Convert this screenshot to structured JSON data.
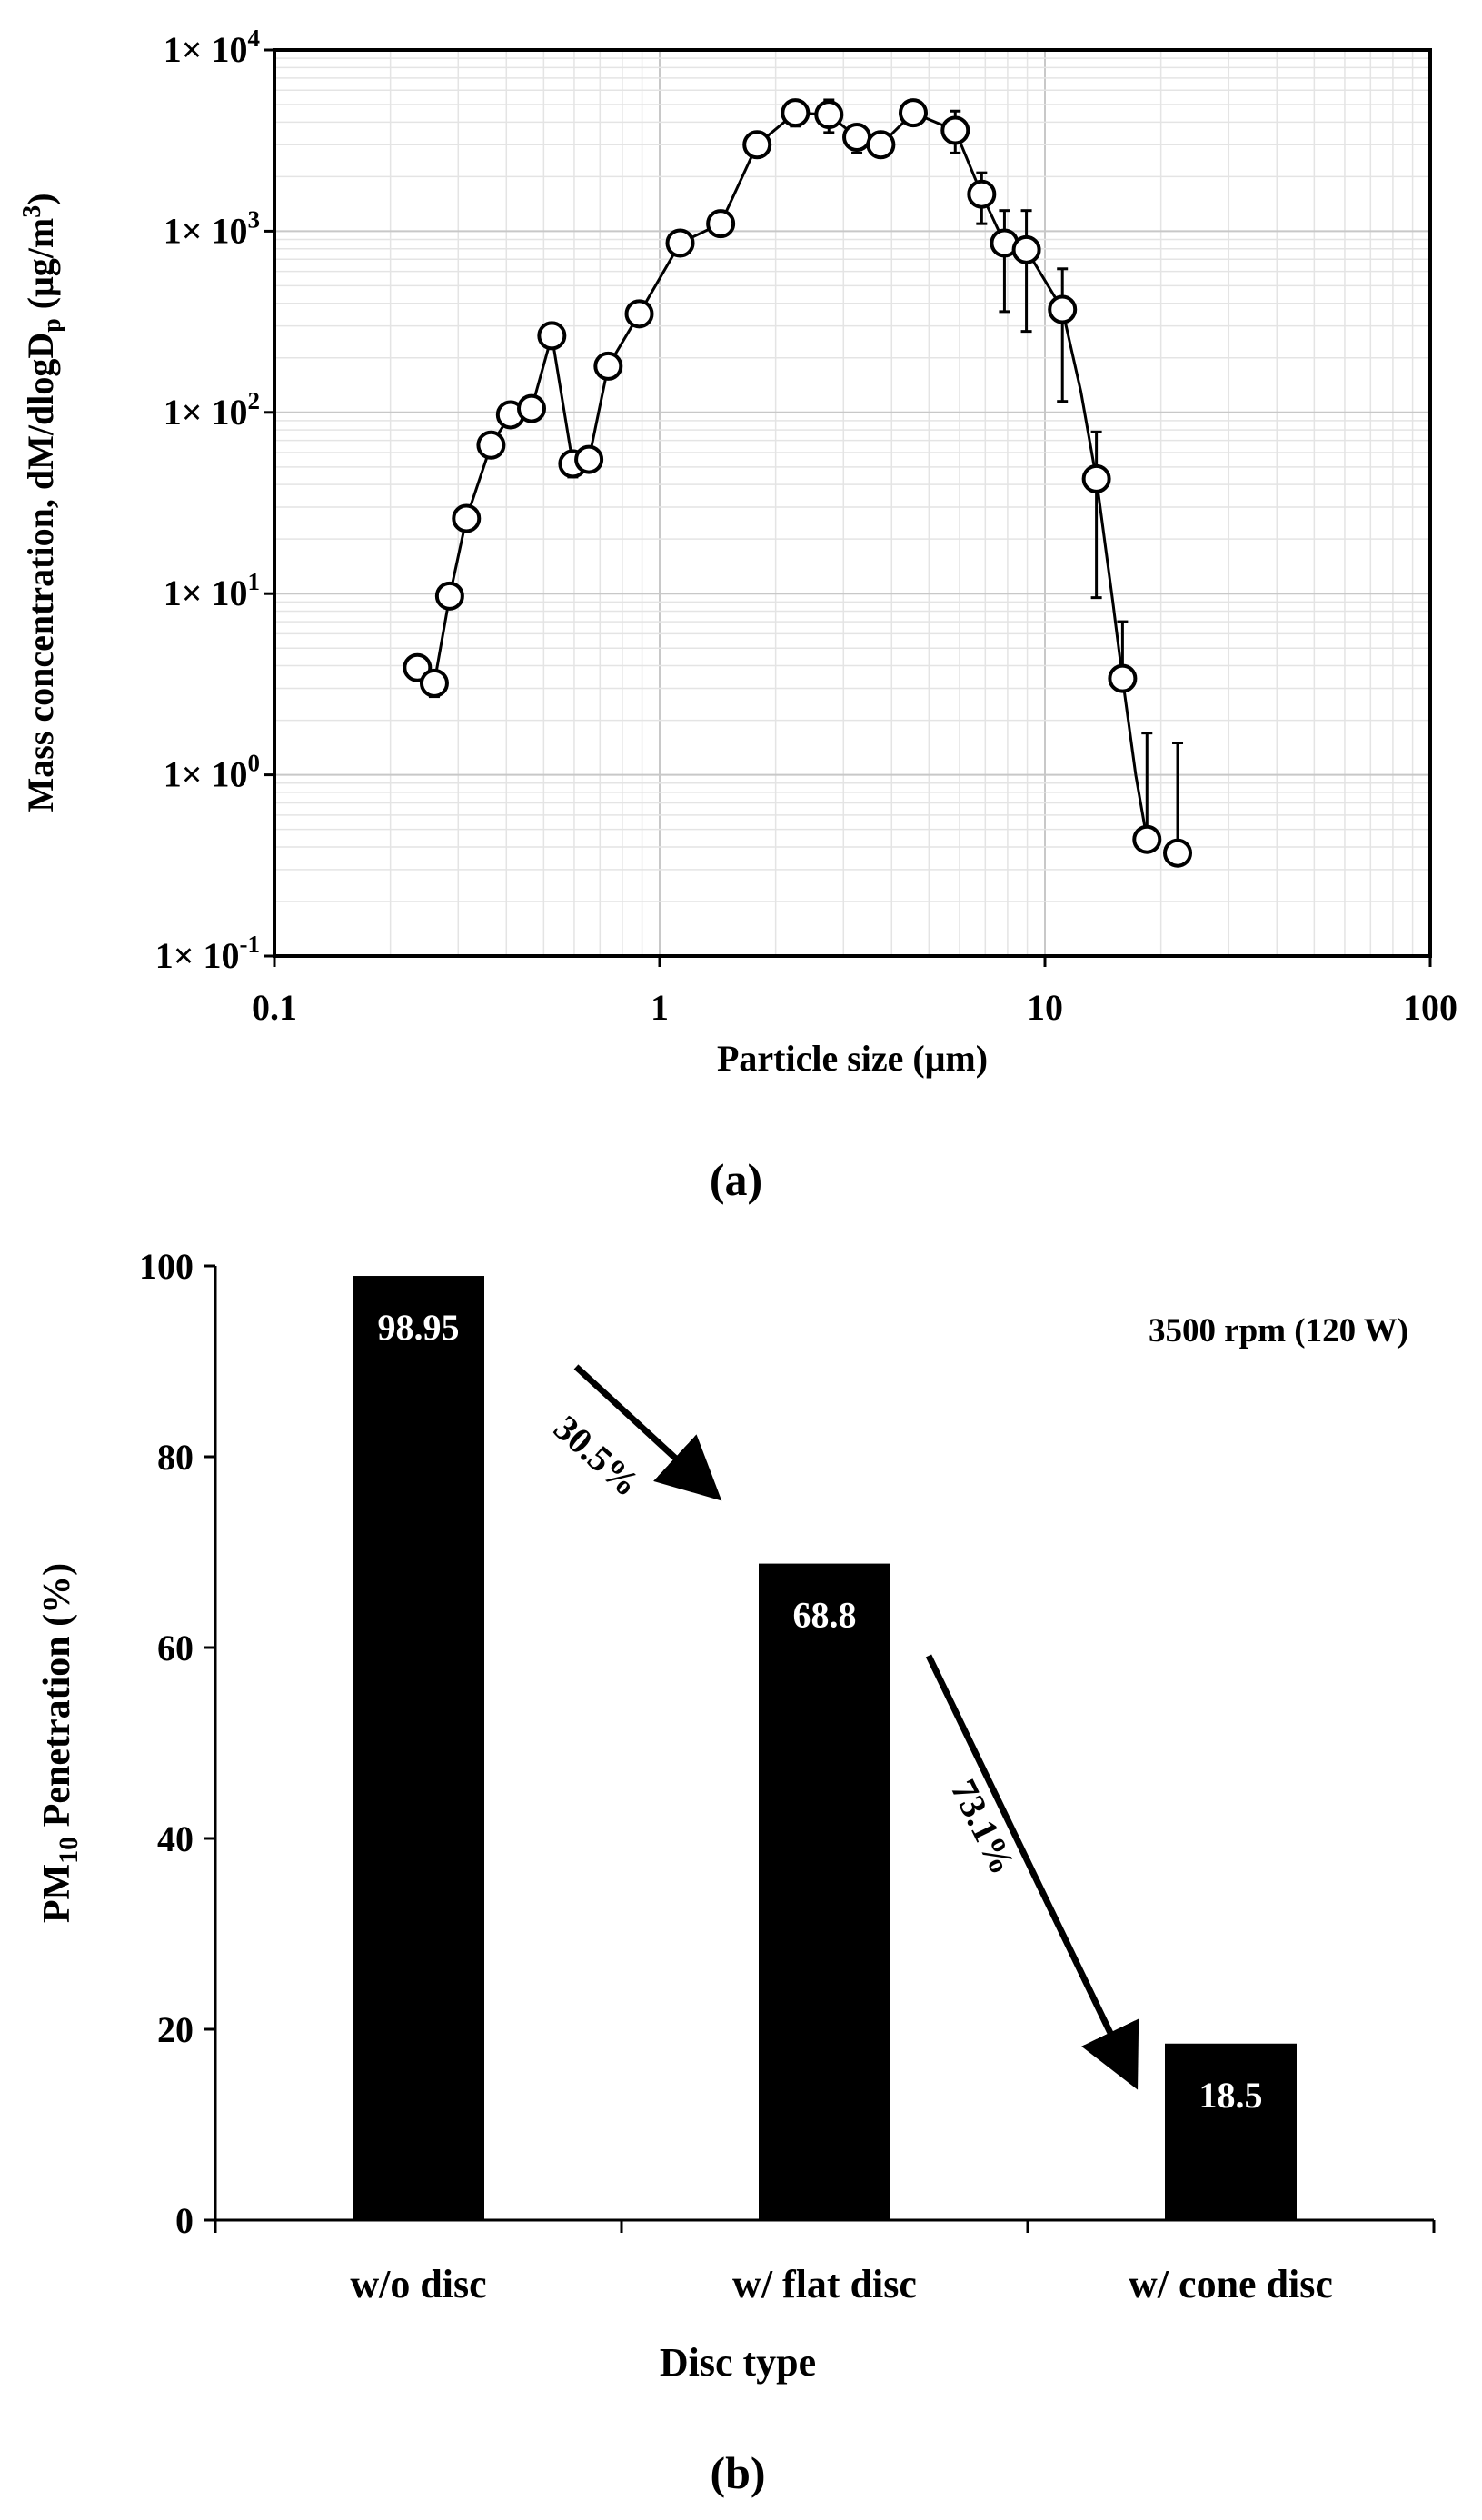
{
  "chart_data": [
    {
      "type": "scatter",
      "panel_label": "(a)",
      "xlabel": "Particle size (μm)",
      "ylabel_parts": [
        "Mass concentration, dM/dlogD",
        "p",
        " (μg/m",
        "3",
        ")"
      ],
      "xscale": "log",
      "yscale": "log",
      "xlim": [
        0.1,
        100
      ],
      "ylim": [
        0.1,
        10000
      ],
      "x_tick_labels": [
        "0.1",
        "1",
        "10",
        "100"
      ],
      "y_tick_labels": [
        {
          "base": "1× 10",
          "exp": "-1"
        },
        {
          "base": "1× 10",
          "exp": "0"
        },
        {
          "base": "1× 10",
          "exp": "1"
        },
        {
          "base": "1× 10",
          "exp": "2"
        },
        {
          "base": "1× 10",
          "exp": "3"
        },
        {
          "base": "1× 10",
          "exp": "4"
        }
      ],
      "grid": true,
      "series": [
        {
          "name": "Mass concentration",
          "x": [
            0.235,
            0.26,
            0.285,
            0.315,
            0.365,
            0.41,
            0.465,
            0.525,
            0.595,
            0.655,
            0.735,
            0.885,
            1.13,
            1.44,
            1.79,
            2.25,
            2.75,
            3.25,
            3.75,
            4.55,
            5.85,
            6.85,
            7.85,
            8.95,
            11.1,
            13.6,
            15.9,
            18.4,
            22.1
          ],
          "y": [
            3.9,
            3.2,
            9.7,
            26,
            66,
            97,
            105,
            265,
            52,
            55,
            180,
            350,
            860,
            1100,
            3000,
            4500,
            4400,
            3300,
            3000,
            4500,
            3600,
            1600,
            860,
            790,
            370,
            43,
            3.4,
            0.44,
            0.37
          ],
          "y_upper": [
            null,
            null,
            null,
            null,
            null,
            null,
            null,
            null,
            null,
            null,
            null,
            null,
            null,
            null,
            null,
            null,
            5300,
            null,
            null,
            null,
            4600,
            2100,
            1300,
            1300,
            620,
            78,
            7,
            1.7,
            1.5
          ],
          "y_lower": [
            null,
            2.7,
            null,
            null,
            null,
            null,
            null,
            null,
            44,
            null,
            null,
            null,
            null,
            null,
            null,
            3800,
            3500,
            2700,
            null,
            null,
            2700,
            1100,
            360,
            280,
            115,
            9.5,
            null,
            null,
            null
          ],
          "trend_x": [
            0.235,
            0.26,
            0.285,
            0.315,
            0.365,
            0.41,
            0.465,
            0.525,
            0.595,
            0.655,
            0.735,
            0.885,
            1.13,
            1.44,
            1.79,
            2.25,
            2.75,
            3.25,
            3.75,
            4.55,
            5.85,
            6.85,
            7.85,
            8.95,
            11.1,
            12.4,
            13.6,
            15.0,
            15.9,
            17.2,
            18.4
          ],
          "trend_y": [
            3.9,
            3.2,
            9.7,
            26,
            66,
            97,
            105,
            265,
            52,
            55,
            180,
            350,
            860,
            1100,
            3000,
            4500,
            4400,
            3300,
            3000,
            4500,
            3600,
            1600,
            860,
            790,
            370,
            130,
            43,
            9,
            3.4,
            1.0,
            0.44
          ]
        }
      ]
    },
    {
      "type": "bar",
      "panel_label": "(b)",
      "xlabel": "Disc type",
      "ylabel_parts": [
        "PM",
        "10",
        " Penetration (%)"
      ],
      "ylim": [
        0,
        100
      ],
      "y_tick_labels": [
        "0",
        "20",
        "40",
        "60",
        "80",
        "100"
      ],
      "grid": false,
      "categories": [
        "w/o disc",
        "w/ flat disc",
        "w/ cone disc"
      ],
      "values": [
        98.95,
        68.8,
        18.5
      ],
      "value_labels": [
        "98.95",
        "68.8",
        "18.5"
      ],
      "annotations": {
        "condition": "3500 rpm (120 W)",
        "reduction_1": "30.5%",
        "reduction_2": "73.1%"
      }
    }
  ]
}
